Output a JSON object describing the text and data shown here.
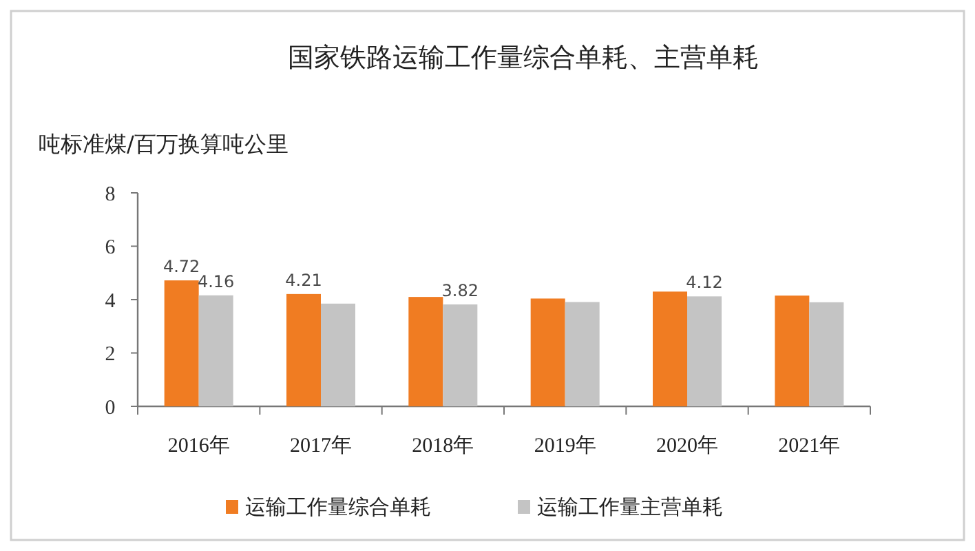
{
  "chart_data": {
    "type": "bar",
    "title": "国家铁路运输工作量综合单耗、主营单耗",
    "ylabel": "吨标准煤/百万换算吨公里",
    "categories": [
      "2016年",
      "2017年",
      "2018年",
      "2019年",
      "2020年",
      "2021年"
    ],
    "series": [
      {
        "name": "运输工作量综合单耗",
        "color": "#f07c22",
        "values": [
          4.72,
          4.21,
          4.1,
          4.04,
          4.3,
          4.15
        ],
        "value_labels": [
          "4.72",
          "4.21",
          null,
          null,
          null,
          null
        ]
      },
      {
        "name": "运输工作量主营单耗",
        "color": "#c4c4c4",
        "values": [
          4.16,
          3.85,
          3.82,
          3.91,
          4.12,
          3.9
        ],
        "value_labels": [
          "4.16",
          null,
          "3.82",
          null,
          "4.12",
          null
        ]
      }
    ],
    "ylim": [
      0,
      8
    ],
    "yticks": [
      0,
      2,
      4,
      6,
      8
    ],
    "legend": "bottom"
  }
}
